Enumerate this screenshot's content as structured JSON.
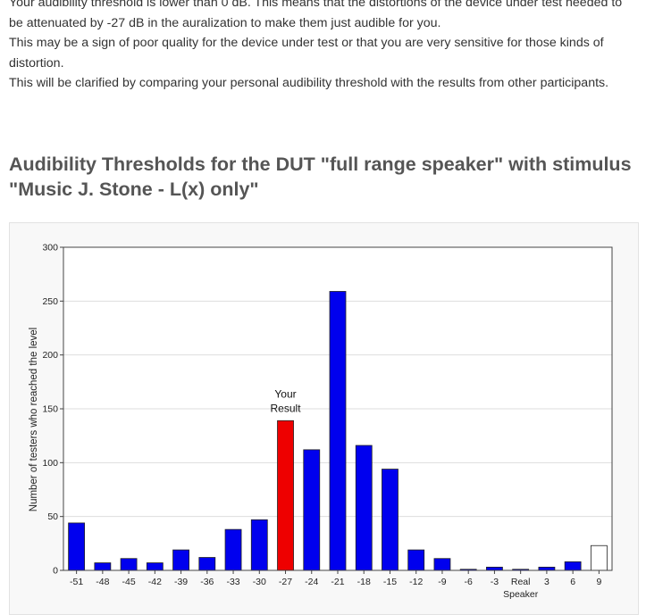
{
  "intro": {
    "paragraph1": "Your audibility threshold is lower than 0 dB. This means that the distortions of the device under test needed to be attenuated by -27 dB in the auralization to make them just audible for you.",
    "paragraph2": "This may be a sign of poor quality for the device under test or that you are very sensitive for those kinds of distortion.",
    "paragraph3": "This will be clarified by comparing your personal audibility threshold with the results from other participants."
  },
  "heading": "Audibility Thresholds for the DUT \"full range speaker\" with stimulus \"Music J. Stone - L(x) only\"",
  "chart_data": {
    "type": "bar",
    "title": "",
    "xlabel": "",
    "ylabel": "Number of testers who reached the level",
    "ylim": [
      0,
      300
    ],
    "yticks": [
      0,
      50,
      100,
      150,
      200,
      250,
      300
    ],
    "grid": true,
    "categories": [
      "-51",
      "-48",
      "-45",
      "-42",
      "-39",
      "-36",
      "-33",
      "-30",
      "-27",
      "-24",
      "-21",
      "-18",
      "-15",
      "-12",
      "-9",
      "-6",
      "-3",
      "Real Speaker",
      "3",
      "6",
      "9"
    ],
    "category_labels": [
      [
        "-51"
      ],
      [
        "-48"
      ],
      [
        "-45"
      ],
      [
        "-42"
      ],
      [
        "-39"
      ],
      [
        "-36"
      ],
      [
        "-33"
      ],
      [
        "-30"
      ],
      [
        "-27"
      ],
      [
        "-24"
      ],
      [
        "-21"
      ],
      [
        "-18"
      ],
      [
        "-15"
      ],
      [
        "-12"
      ],
      [
        "-9"
      ],
      [
        "-6"
      ],
      [
        "-3"
      ],
      [
        "Real",
        "Speaker"
      ],
      [
        "3"
      ],
      [
        "6"
      ],
      [
        "9"
      ]
    ],
    "values": [
      44,
      7,
      11,
      7,
      19,
      12,
      38,
      47,
      139,
      112,
      259,
      116,
      94,
      19,
      11,
      1,
      3,
      1,
      3,
      8,
      23
    ],
    "highlight_index": 8,
    "hollow_index": 20,
    "annotation": {
      "category": "-27",
      "lines": [
        "Your",
        "Result"
      ]
    },
    "colors": {
      "bar": "#0000ee",
      "highlight": "#ee0000",
      "hollow_fill": "#ffffff",
      "bar_stroke": "#222222",
      "grid": "#dddddd",
      "axis": "#444444"
    }
  }
}
